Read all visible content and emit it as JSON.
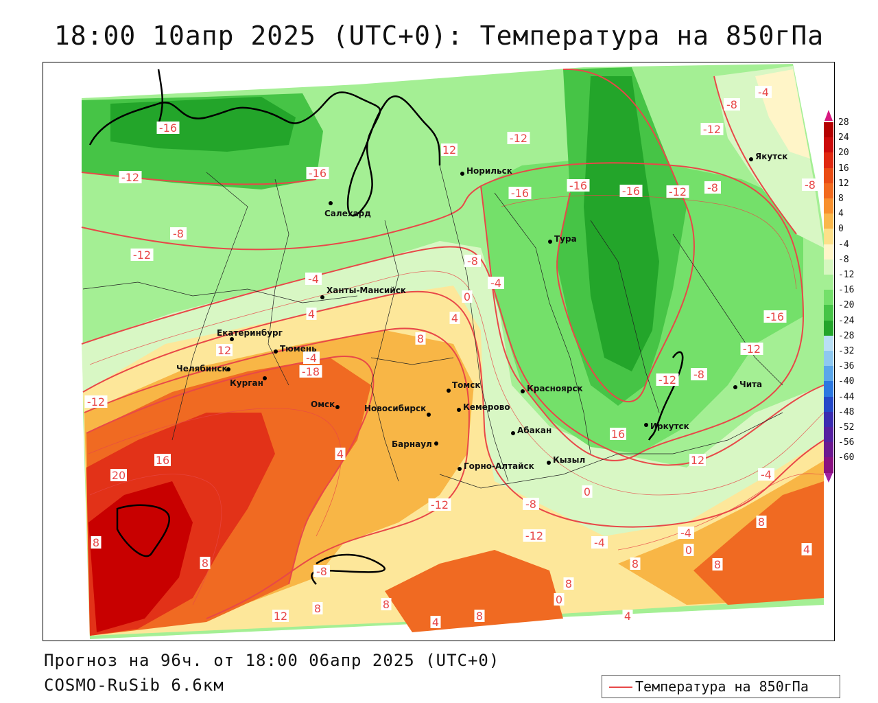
{
  "title": "18:00 10апр 2025 (UTC+0): Температура на 850гПа",
  "footer": {
    "forecast": "Прогноз на 96ч. от 18:00 06апр 2025 (UTC+0)",
    "model": "COSMO-RuSib 6.6км"
  },
  "legend": {
    "label": "Температура на 850гПа",
    "line_color": "#e84848"
  },
  "colors": {
    "isoline": "#e84848",
    "warm_28": "#c80000",
    "warm_20": "#e23218",
    "warm_12": "#f06a22",
    "warm_4": "#f8b646",
    "warm_0": "#fde79a",
    "cold_m4": "#d8f7c4",
    "cold_m8": "#a4ef94",
    "cold_m12": "#74e06a",
    "cold_m16": "#46c446",
    "cold_m20": "#23a52a"
  },
  "color_scale": {
    "labels": [
      "28",
      "24",
      "20",
      "16",
      "12",
      "8",
      "4",
      "0",
      "-4",
      "-8",
      "-12",
      "-16",
      "-20",
      "-24",
      "-28",
      "-32",
      "-36",
      "-40",
      "-44",
      "-48",
      "-52",
      "-56",
      "-60"
    ],
    "colors": [
      "#b40000",
      "#cc0a0a",
      "#e02810",
      "#ea4c14",
      "#f26a1e",
      "#f8902e",
      "#fab84c",
      "#fde08a",
      "#fff5c8",
      "#d6f7c0",
      "#a4ef94",
      "#74e06a",
      "#46c446",
      "#23a52a",
      "#b9dff5",
      "#8ec8f0",
      "#5aa6ea",
      "#2c78e0",
      "#2448c8",
      "#3a2cb0",
      "#5520a0",
      "#6c1890",
      "#8a1080"
    ]
  },
  "cities": [
    {
      "name": "Якутск"
    },
    {
      "name": "Норильск"
    },
    {
      "name": "Салехард"
    },
    {
      "name": "Тура"
    },
    {
      "name": "Ханты-Мансийск"
    },
    {
      "name": "Екатеринбург"
    },
    {
      "name": "Тюмень"
    },
    {
      "name": "Челябинск"
    },
    {
      "name": "Курган"
    },
    {
      "name": "Омск"
    },
    {
      "name": "Томск"
    },
    {
      "name": "Новосибирск"
    },
    {
      "name": "Кемерово"
    },
    {
      "name": "Красноярск"
    },
    {
      "name": "Барнаул"
    },
    {
      "name": "Абакан"
    },
    {
      "name": "Иркутск"
    },
    {
      "name": "Чита"
    },
    {
      "name": "Кызыл"
    },
    {
      "name": "Горно-Алтайск"
    }
  ],
  "isotherm_labels": [
    "-4",
    "-8",
    "-16",
    "-12",
    "-12",
    "12",
    "-12",
    "-16",
    "-16",
    "-16",
    "-16",
    "-12",
    "-8",
    "-8",
    "-8",
    "-12",
    "-8",
    "-4",
    "-4",
    "0",
    "4",
    "4",
    "8",
    "12",
    "-4",
    "-18",
    "-12",
    "-12",
    "-8",
    "-16",
    "-12",
    "16",
    "12",
    "20",
    "16",
    "8",
    "8",
    "4",
    "-8",
    "-12",
    "-8",
    "0",
    "-4",
    "-4",
    "-12",
    "-4",
    "0",
    "8",
    "8",
    "4",
    "8",
    "8",
    "12",
    "4",
    "8",
    "8",
    "8",
    "0",
    "4"
  ]
}
